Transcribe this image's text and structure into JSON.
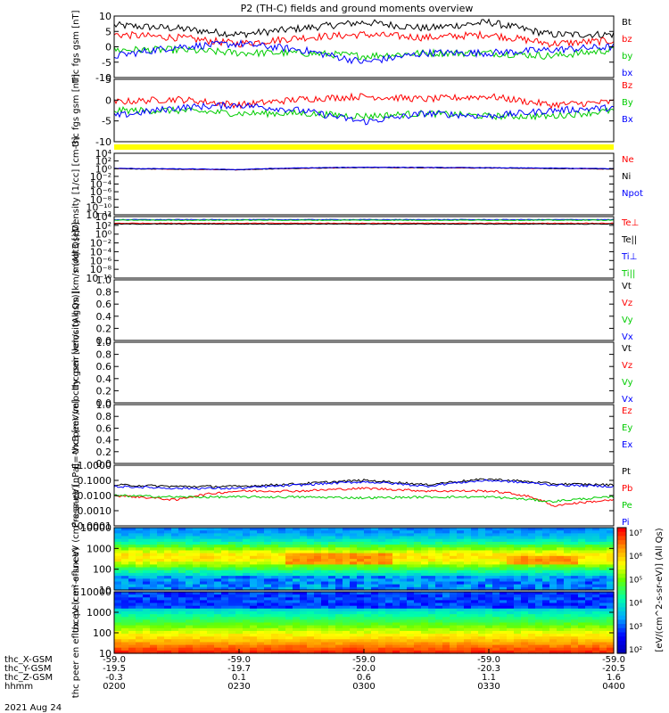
{
  "title": "P2 (TH-C) fields and ground moments overview",
  "date_label": "2021 Aug 24",
  "colors": {
    "black": "#000000",
    "red": "#ff0000",
    "green": "#00cc00",
    "blue": "#0000ff",
    "yellow": "#ffff00"
  },
  "chart_data": [
    {
      "type": "line",
      "panel": "fgs_gsm",
      "ylabel": "thc fgs gsm [nT]",
      "ylim": [
        -10,
        10
      ],
      "yticks": [
        "10",
        "5",
        "0",
        "-5",
        "-10"
      ],
      "series": [
        {
          "name": "Bt",
          "color": "#000000",
          "x": [
            "0200",
            "0215",
            "0230",
            "0245",
            "0300",
            "0315",
            "0330",
            "0345",
            "0400"
          ],
          "values": [
            7,
            6,
            4,
            6,
            8,
            6,
            8,
            4,
            4
          ]
        },
        {
          "name": "bz",
          "color": "#ff0000",
          "x": [
            "0200",
            "0215",
            "0230",
            "0245",
            "0300",
            "0315",
            "0330",
            "0345",
            "0400"
          ],
          "values": [
            4,
            3,
            1,
            3,
            4,
            3,
            4,
            1,
            2
          ]
        },
        {
          "name": "by",
          "color": "#00cc00",
          "x": [
            "0200",
            "0215",
            "0230",
            "0245",
            "0300",
            "0315",
            "0330",
            "0345",
            "0400"
          ],
          "values": [
            -1,
            -1,
            -2,
            -2,
            -3,
            -2,
            -2,
            -3,
            -1
          ]
        },
        {
          "name": "bx",
          "color": "#0000ff",
          "x": [
            "0200",
            "0215",
            "0230",
            "0245",
            "0300",
            "0315",
            "0330",
            "0345",
            "0400"
          ],
          "values": [
            -3,
            0,
            1,
            -1,
            -5,
            -2,
            -2,
            -1,
            0
          ]
        }
      ]
    },
    {
      "type": "line",
      "panel": "fgs_gsm_2",
      "ylabel": "thc fgs gsm [nT]",
      "ylim": [
        -12,
        10
      ],
      "yticks": [
        "5",
        "0",
        "-5",
        "-10"
      ],
      "series": [
        {
          "name": "Bz",
          "color": "#ff0000",
          "x": [
            "0200",
            "0215",
            "0230",
            "0245",
            "0300",
            "0315",
            "0330",
            "0345",
            "0400"
          ],
          "values": [
            2,
            3,
            1,
            3,
            4,
            3,
            4,
            1,
            2
          ]
        },
        {
          "name": "By",
          "color": "#00cc00",
          "x": [
            "0200",
            "0215",
            "0230",
            "0245",
            "0300",
            "0315",
            "0330",
            "0345",
            "0400"
          ],
          "values": [
            -1,
            -1,
            -2,
            -2,
            -3,
            -2,
            -3,
            -3,
            -1
          ]
        },
        {
          "name": "Bx",
          "color": "#0000ff",
          "x": [
            "0200",
            "0215",
            "0230",
            "0245",
            "0300",
            "0315",
            "0330",
            "0345",
            "0400"
          ],
          "values": [
            -3,
            0,
            1,
            -1,
            -5,
            -2,
            -3,
            -1,
            0
          ]
        }
      ]
    },
    {
      "type": "line",
      "panel": "density",
      "ylabel": "Density [1/cc] [cm-3]",
      "log_scale": true,
      "ylim": [
        1e-12,
        10000.0
      ],
      "yticks": [
        "10⁴",
        "10²",
        "10⁰",
        "10⁻²",
        "10⁻⁴",
        "10⁻⁶",
        "10⁻⁸",
        "10⁻¹⁰",
        "10⁻¹²"
      ],
      "series": [
        {
          "name": "Ne",
          "color": "#ff0000",
          "x": [
            "0200",
            "0230",
            "0300",
            "0330",
            "0400"
          ],
          "values": [
            1.0,
            0.5,
            2.0,
            1.5,
            0.8
          ]
        },
        {
          "name": "Ni",
          "color": "#000000",
          "x": [
            "0200",
            "0230",
            "0300",
            "0330",
            "0400"
          ],
          "values": [
            1.0,
            0.5,
            2.0,
            1.5,
            0.8
          ]
        },
        {
          "name": "Npot",
          "color": "#0000ff",
          "x": [
            "0200",
            "0230",
            "0300",
            "0330",
            "0400"
          ],
          "values": [
            1.2,
            0.6,
            2.5,
            1.8,
            1.0
          ]
        }
      ]
    },
    {
      "type": "line",
      "panel": "temperature",
      "ylabel": "moqt3 [eV]",
      "log_scale": true,
      "ylim": [
        1e-10,
        10000.0
      ],
      "yticks": [
        "10⁴",
        "10²",
        "10⁰",
        "10⁻²",
        "10⁻⁴",
        "10⁻⁶",
        "10⁻⁸",
        "10⁻¹⁰"
      ],
      "series": [
        {
          "name": "Te⊥",
          "color": "#ff0000",
          "x": [
            "0200",
            "0300",
            "0400"
          ],
          "values": [
            300,
            300,
            300
          ]
        },
        {
          "name": "Te||",
          "color": "#000000",
          "x": [
            "0200",
            "0300",
            "0400"
          ],
          "values": [
            200,
            200,
            200
          ]
        },
        {
          "name": "Ti⊥",
          "color": "#0000ff",
          "x": [
            "0200",
            "0300",
            "0400"
          ],
          "values": [
            2000,
            2000,
            2000
          ]
        },
        {
          "name": "Ti||",
          "color": "#00cc00",
          "x": [
            "0200",
            "0300",
            "0400"
          ],
          "values": [
            1500,
            1500,
            1500
          ]
        }
      ]
    },
    {
      "type": "line",
      "panel": "peir_velocity",
      "ylabel": "thc peir velocity gsm [km/s (All Qs)]",
      "ylim": [
        0,
        1
      ],
      "yticks": [
        "1.0",
        "0.8",
        "0.6",
        "0.4",
        "0.2",
        "0.0"
      ],
      "series": [
        {
          "name": "Vt",
          "color": "#000000",
          "values": []
        },
        {
          "name": "Vz",
          "color": "#ff0000",
          "values": []
        },
        {
          "name": "Vy",
          "color": "#00cc00",
          "values": []
        },
        {
          "name": "Vx",
          "color": "#0000ff",
          "values": []
        }
      ]
    },
    {
      "type": "line",
      "panel": "peer_velocity",
      "ylabel": "thc peer velocity gsm [km/s (All Qs)]",
      "ylim": [
        0,
        1
      ],
      "yticks": [
        "1.0",
        "0.8",
        "0.6",
        "0.4",
        "0.2",
        "0.0"
      ],
      "series": [
        {
          "name": "Vt",
          "color": "#000000",
          "values": []
        },
        {
          "name": "Vz",
          "color": "#ff0000",
          "values": []
        },
        {
          "name": "Vy",
          "color": "#00cc00",
          "values": []
        },
        {
          "name": "Vx",
          "color": "#0000ff",
          "values": []
        }
      ]
    },
    {
      "type": "line",
      "panel": "e_field",
      "ylabel": "E=-VxB [mV/m]",
      "ylim": [
        0,
        1
      ],
      "yticks": [
        "1.0",
        "0.8",
        "0.6",
        "0.4",
        "0.2",
        "0.0"
      ],
      "series": [
        {
          "name": "Ez",
          "color": "#ff0000",
          "values": []
        },
        {
          "name": "Ey",
          "color": "#00cc00",
          "values": []
        },
        {
          "name": "Ex",
          "color": "#0000ff",
          "values": []
        }
      ]
    },
    {
      "type": "line",
      "panel": "pressure",
      "ylabel": "Pressure [nPa]",
      "log_scale": true,
      "ylim": [
        0.0001,
        1.0
      ],
      "yticks": [
        "1.0000",
        "0.1000",
        "0.0100",
        "0.0010",
        "0.0001"
      ],
      "series": [
        {
          "name": "Pt",
          "color": "#000000",
          "x": [
            "0200",
            "0215",
            "0230",
            "0245",
            "0300",
            "0315",
            "0330",
            "0345",
            "0400"
          ],
          "values": [
            0.05,
            0.04,
            0.04,
            0.06,
            0.1,
            0.05,
            0.12,
            0.06,
            0.05
          ]
        },
        {
          "name": "Pb",
          "color": "#ff0000",
          "x": [
            "0200",
            "0215",
            "0230",
            "0245",
            "0300",
            "0315",
            "0330",
            "0345",
            "0400"
          ],
          "values": [
            0.01,
            0.005,
            0.02,
            0.02,
            0.03,
            0.02,
            0.02,
            0.002,
            0.005
          ]
        },
        {
          "name": "Pe",
          "color": "#00cc00",
          "x": [
            "0200",
            "0215",
            "0230",
            "0245",
            "0300",
            "0315",
            "0330",
            "0345",
            "0400"
          ],
          "values": [
            0.01,
            0.008,
            0.008,
            0.008,
            0.007,
            0.008,
            0.008,
            0.004,
            0.008
          ]
        },
        {
          "name": "Pi",
          "color": "#0000ff",
          "x": [
            "0200",
            "0215",
            "0230",
            "0245",
            "0300",
            "0315",
            "0330",
            "0345",
            "0400"
          ],
          "values": [
            0.04,
            0.03,
            0.03,
            0.05,
            0.08,
            0.04,
            0.1,
            0.05,
            0.04
          ]
        }
      ]
    },
    {
      "type": "heatmap",
      "panel": "peir_spectrogram",
      "ylabel": "thc peir en eflux eV (cm²-s-sr-eV)",
      "log_scale": true,
      "yticks": [
        "10000",
        "1000",
        "100",
        "10"
      ],
      "colorbar_label": "[eV/(cm^2-s-sr-eV)] (All Qs)",
      "colorbar_ticks": [
        "10⁷",
        "10⁶",
        "10⁵",
        "10⁴",
        "10³",
        "10²"
      ]
    },
    {
      "type": "heatmap",
      "panel": "peer_spectrogram",
      "ylabel": "thc peer en eflux eV (cm²-s-sr-eV)",
      "log_scale": true,
      "yticks": [
        "10000",
        "1000",
        "100",
        "10"
      ],
      "colorbar_label": "[eV/(cm^2-s-sr-eV)] (All Qs)",
      "colorbar_ticks": [
        "10⁷",
        "10⁶",
        "10⁵",
        "10⁴",
        "10³",
        "10²"
      ]
    }
  ],
  "xaxis": {
    "row_labels": [
      "thc_X-GSM",
      "thc_Y-GSM",
      "thc_Z-GSM",
      "hhmm"
    ],
    "ticks": [
      {
        "x": "-59.0",
        "y": "-19.5",
        "z": "-0.3",
        "t": "0200"
      },
      {
        "x": "-59.0",
        "y": "-19.7",
        "z": "0.1",
        "t": "0230"
      },
      {
        "x": "-59.0",
        "y": "-20.0",
        "z": "0.6",
        "t": "0300"
      },
      {
        "x": "-59.0",
        "y": "-20.3",
        "z": "1.1",
        "t": "0330"
      },
      {
        "x": "-59.0",
        "y": "-20.5",
        "z": "1.6",
        "t": "0400"
      }
    ]
  }
}
